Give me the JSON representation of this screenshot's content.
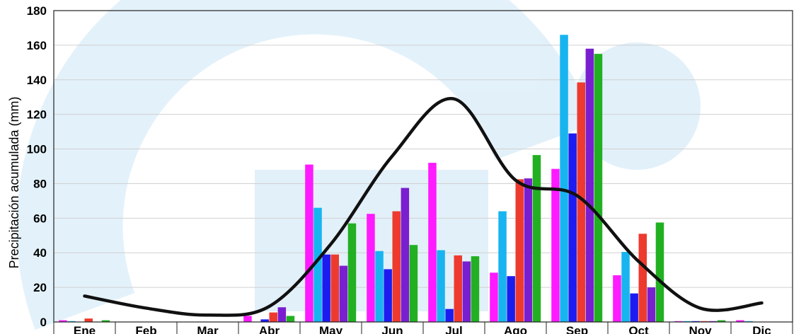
{
  "chart_data": {
    "type": "bar",
    "ylabel": "Precipitación acumulada (mm)",
    "ylim": [
      0,
      180
    ],
    "yticks": [
      0,
      20,
      40,
      60,
      80,
      100,
      120,
      140,
      160,
      180
    ],
    "grid": true,
    "categories": [
      "Ene",
      "Feb",
      "Mar",
      "Abr",
      "May",
      "Jun",
      "Jul",
      "Ago",
      "Sep",
      "Oct",
      "Nov",
      "Dic"
    ],
    "series": [
      {
        "color": "#ff1aff",
        "values": [
          1.0,
          0,
          0,
          3.5,
          91,
          62.5,
          92,
          28.5,
          88.5,
          27,
          0.5,
          1.0
        ]
      },
      {
        "color": "#18b4f0",
        "values": [
          0.5,
          0,
          0,
          0,
          66,
          41,
          41.5,
          64,
          166,
          40.5,
          0.5,
          0.5
        ]
      },
      {
        "color": "#1c1cf0",
        "values": [
          0,
          0,
          0,
          1.5,
          39,
          30.5,
          7.5,
          26.5,
          109,
          16.5,
          0.5,
          0
        ]
      },
      {
        "color": "#ee3a2e",
        "values": [
          2.0,
          0,
          0,
          5.5,
          39,
          64,
          38.5,
          82.5,
          138.5,
          51,
          0.5,
          0
        ]
      },
      {
        "color": "#7a1fd0",
        "values": [
          0,
          0,
          0,
          8.5,
          32.5,
          77.5,
          35,
          83,
          158,
          20,
          0.5,
          0
        ]
      },
      {
        "color": "#22b022",
        "values": [
          1.0,
          0,
          0,
          3.5,
          57,
          44.5,
          38,
          96.5,
          155,
          57.5,
          1.0,
          0
        ]
      }
    ],
    "line": {
      "color": "#111111",
      "values": [
        15,
        8,
        4,
        9,
        45,
        96,
        129,
        82,
        73,
        35,
        8,
        11
      ]
    }
  }
}
